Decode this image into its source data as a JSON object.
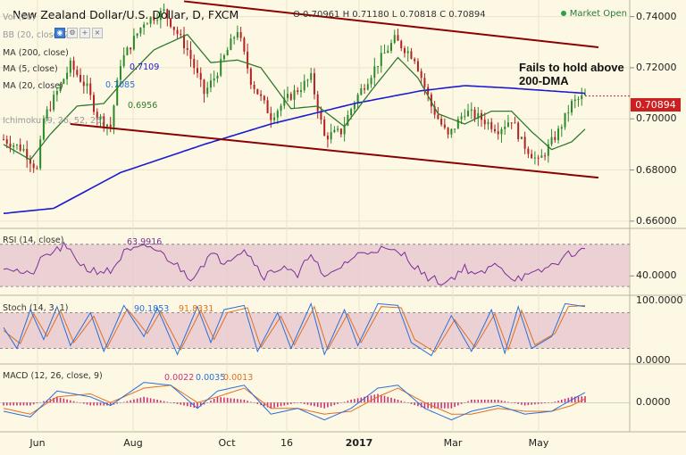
{
  "header": {
    "title": "New Zealand Dollar/U.S. Dollar, D, FXCM",
    "ohlc": "O 0.70961 H 0.71180 L 0.70818 C 0.70894",
    "market_status": "Market Open"
  },
  "indicators": {
    "vol": "Vol (20)",
    "bb": "BB (20, close, 2)",
    "ma200": "MA (200, close)",
    "ma200_value": "0.7109",
    "ma5": "MA (5, close)",
    "ma5_value": "0.7085",
    "ma20": "MA (20, close)",
    "ma20_value": "0.6956",
    "ichimoku": "Ichimoku (9, 26, 52, 26)"
  },
  "annotation": "Fails to hold above 200-DMA",
  "colors": {
    "up": "#2a8a2a",
    "down": "#b22222",
    "ma200": "#1a1ad0",
    "ma20": "#2f7a2f",
    "trendline": "#8b0000",
    "rsi": "#7a2f9a",
    "stoch_k": "#2a6fd6",
    "stoch_d": "#e07020",
    "macd": "#2a6fd6",
    "signal": "#e07020",
    "hist": "#cc3377",
    "band": "#e6c4cf"
  },
  "chart_data": [
    {
      "type": "candlestick",
      "name": "price",
      "title": "New Zealand Dollar/U.S. Dollar, D, FXCM",
      "x_labels": [
        "Jun",
        "Aug",
        "Oct",
        "16",
        "2017",
        "Mar",
        "May"
      ],
      "y_ticks": [
        0.66,
        0.68,
        0.7,
        0.72,
        0.74
      ],
      "y_tick_labels": [
        "0.66000",
        "0.68000",
        "0.70000",
        "0.72000",
        "0.74000"
      ],
      "ylim": [
        0.6575,
        0.7465
      ],
      "last_price": 0.70894,
      "last_price_label": "0.70894",
      "close_anchors": [
        [
          0,
          0.692
        ],
        [
          6,
          0.688
        ],
        [
          10,
          0.68
        ],
        [
          12,
          0.7
        ],
        [
          20,
          0.721
        ],
        [
          25,
          0.712
        ],
        [
          28,
          0.701
        ],
        [
          32,
          0.697
        ],
        [
          35,
          0.722
        ],
        [
          42,
          0.738
        ],
        [
          48,
          0.742
        ],
        [
          55,
          0.727
        ],
        [
          60,
          0.71
        ],
        [
          63,
          0.716
        ],
        [
          70,
          0.735
        ],
        [
          74,
          0.715
        ],
        [
          80,
          0.701
        ],
        [
          85,
          0.708
        ],
        [
          92,
          0.716
        ],
        [
          96,
          0.693
        ],
        [
          101,
          0.695
        ],
        [
          105,
          0.707
        ],
        [
          112,
          0.722
        ],
        [
          117,
          0.731
        ],
        [
          123,
          0.724
        ],
        [
          128,
          0.705
        ],
        [
          133,
          0.693
        ],
        [
          138,
          0.703
        ],
        [
          143,
          0.7
        ],
        [
          148,
          0.696
        ],
        [
          152,
          0.7
        ],
        [
          155,
          0.691
        ],
        [
          160,
          0.683
        ],
        [
          166,
          0.695
        ],
        [
          170,
          0.706
        ],
        [
          174,
          0.709
        ]
      ],
      "ma200_anchors": [
        [
          0,
          0.663
        ],
        [
          15,
          0.665
        ],
        [
          35,
          0.679
        ],
        [
          60,
          0.69
        ],
        [
          80,
          0.698
        ],
        [
          105,
          0.706
        ],
        [
          125,
          0.711
        ],
        [
          138,
          0.713
        ],
        [
          152,
          0.712
        ],
        [
          174,
          0.71
        ]
      ],
      "ma20_anchors": [
        [
          0,
          0.69
        ],
        [
          8,
          0.684
        ],
        [
          14,
          0.694
        ],
        [
          22,
          0.705
        ],
        [
          30,
          0.706
        ],
        [
          36,
          0.715
        ],
        [
          45,
          0.727
        ],
        [
          55,
          0.733
        ],
        [
          62,
          0.722
        ],
        [
          70,
          0.723
        ],
        [
          77,
          0.72
        ],
        [
          86,
          0.704
        ],
        [
          94,
          0.705
        ],
        [
          102,
          0.697
        ],
        [
          110,
          0.711
        ],
        [
          118,
          0.724
        ],
        [
          124,
          0.716
        ],
        [
          130,
          0.702
        ],
        [
          138,
          0.698
        ],
        [
          146,
          0.703
        ],
        [
          152,
          0.703
        ],
        [
          158,
          0.695
        ],
        [
          164,
          0.688
        ],
        [
          170,
          0.691
        ],
        [
          174,
          0.696
        ]
      ],
      "trendlines": [
        {
          "name": "upper",
          "from": [
            54,
            0.746
          ],
          "to": [
            178,
            0.728
          ]
        },
        {
          "name": "lower",
          "from": [
            20,
            0.698
          ],
          "to": [
            178,
            0.677
          ]
        }
      ]
    },
    {
      "type": "line",
      "name": "RSI",
      "label": "RSI (14, close)",
      "value_label": "63.9916",
      "ylim": [
        25,
        80
      ],
      "levels": [
        30,
        70
      ],
      "y_tick_labels": [
        "40.0000"
      ],
      "anchors": [
        [
          0,
          50
        ],
        [
          8,
          40
        ],
        [
          12,
          58
        ],
        [
          18,
          68
        ],
        [
          25,
          46
        ],
        [
          32,
          44
        ],
        [
          36,
          62
        ],
        [
          44,
          68
        ],
        [
          50,
          55
        ],
        [
          56,
          38
        ],
        [
          62,
          60
        ],
        [
          66,
          54
        ],
        [
          72,
          66
        ],
        [
          78,
          40
        ],
        [
          84,
          50
        ],
        [
          88,
          38
        ],
        [
          92,
          64
        ],
        [
          96,
          36
        ],
        [
          102,
          52
        ],
        [
          106,
          60
        ],
        [
          112,
          66
        ],
        [
          120,
          60
        ],
        [
          126,
          40
        ],
        [
          132,
          33
        ],
        [
          138,
          48
        ],
        [
          142,
          40
        ],
        [
          148,
          52
        ],
        [
          152,
          38
        ],
        [
          158,
          40
        ],
        [
          164,
          50
        ],
        [
          170,
          62
        ],
        [
          174,
          64
        ]
      ]
    },
    {
      "type": "line",
      "name": "Stochastic",
      "label": "Stoch (14, 3, 1)",
      "k_value_label": "90.1853",
      "d_value_label": "91.8331",
      "ylim": [
        0,
        100
      ],
      "levels": [
        20,
        80
      ],
      "y_tick_labels": [
        "100.0000",
        "0.0000"
      ],
      "k_anchors": [
        [
          0,
          55
        ],
        [
          4,
          20
        ],
        [
          8,
          85
        ],
        [
          12,
          35
        ],
        [
          16,
          90
        ],
        [
          20,
          25
        ],
        [
          26,
          80
        ],
        [
          30,
          15
        ],
        [
          36,
          92
        ],
        [
          42,
          40
        ],
        [
          46,
          88
        ],
        [
          52,
          10
        ],
        [
          58,
          90
        ],
        [
          62,
          30
        ],
        [
          66,
          85
        ],
        [
          72,
          92
        ],
        [
          76,
          15
        ],
        [
          82,
          80
        ],
        [
          86,
          20
        ],
        [
          92,
          95
        ],
        [
          96,
          10
        ],
        [
          102,
          85
        ],
        [
          106,
          25
        ],
        [
          112,
          95
        ],
        [
          118,
          92
        ],
        [
          122,
          30
        ],
        [
          128,
          8
        ],
        [
          134,
          75
        ],
        [
          140,
          15
        ],
        [
          146,
          85
        ],
        [
          150,
          12
        ],
        [
          154,
          90
        ],
        [
          158,
          20
        ],
        [
          164,
          40
        ],
        [
          168,
          95
        ],
        [
          174,
          90
        ]
      ],
      "d_anchors": [
        [
          0,
          50
        ],
        [
          5,
          28
        ],
        [
          9,
          78
        ],
        [
          13,
          40
        ],
        [
          17,
          84
        ],
        [
          21,
          30
        ],
        [
          27,
          74
        ],
        [
          31,
          22
        ],
        [
          37,
          86
        ],
        [
          43,
          45
        ],
        [
          47,
          82
        ],
        [
          53,
          18
        ],
        [
          59,
          84
        ],
        [
          63,
          35
        ],
        [
          67,
          80
        ],
        [
          73,
          88
        ],
        [
          77,
          22
        ],
        [
          83,
          74
        ],
        [
          87,
          26
        ],
        [
          93,
          90
        ],
        [
          97,
          18
        ],
        [
          103,
          78
        ],
        [
          107,
          30
        ],
        [
          113,
          90
        ],
        [
          119,
          88
        ],
        [
          123,
          35
        ],
        [
          129,
          14
        ],
        [
          135,
          68
        ],
        [
          141,
          22
        ],
        [
          147,
          78
        ],
        [
          151,
          18
        ],
        [
          155,
          84
        ],
        [
          159,
          26
        ],
        [
          165,
          45
        ],
        [
          169,
          90
        ],
        [
          174,
          92
        ]
      ]
    },
    {
      "type": "line",
      "name": "MACD",
      "label": "MACD (12, 26, close, 9)",
      "hist_value_label": "0.0022",
      "macd_value_label": "0.0035",
      "signal_value_label": "0.0013",
      "ylim": [
        -0.0095,
        0.0115
      ],
      "y_tick_labels": [
        "0.0000"
      ],
      "macd_anchors": [
        [
          0,
          -0.003
        ],
        [
          8,
          -0.005
        ],
        [
          16,
          0.004
        ],
        [
          26,
          0.002
        ],
        [
          32,
          -0.001
        ],
        [
          42,
          0.007
        ],
        [
          50,
          0.006
        ],
        [
          58,
          -0.002
        ],
        [
          64,
          0.004
        ],
        [
          72,
          0.006
        ],
        [
          80,
          -0.004
        ],
        [
          88,
          -0.002
        ],
        [
          96,
          -0.006
        ],
        [
          104,
          -0.002
        ],
        [
          112,
          0.005
        ],
        [
          118,
          0.006
        ],
        [
          126,
          -0.002
        ],
        [
          134,
          -0.006
        ],
        [
          140,
          -0.003
        ],
        [
          148,
          -0.001
        ],
        [
          156,
          -0.004
        ],
        [
          164,
          -0.003
        ],
        [
          170,
          0.001
        ],
        [
          174,
          0.0035
        ]
      ],
      "signal_anchors": [
        [
          0,
          -0.002
        ],
        [
          8,
          -0.004
        ],
        [
          16,
          0.002
        ],
        [
          26,
          0.003
        ],
        [
          32,
          0.0
        ],
        [
          42,
          0.005
        ],
        [
          50,
          0.006
        ],
        [
          58,
          0.0
        ],
        [
          64,
          0.002
        ],
        [
          72,
          0.005
        ],
        [
          80,
          -0.002
        ],
        [
          88,
          -0.002
        ],
        [
          96,
          -0.004
        ],
        [
          104,
          -0.003
        ],
        [
          112,
          0.002
        ],
        [
          118,
          0.005
        ],
        [
          126,
          0.0
        ],
        [
          134,
          -0.004
        ],
        [
          140,
          -0.004
        ],
        [
          148,
          -0.002
        ],
        [
          156,
          -0.003
        ],
        [
          164,
          -0.003
        ],
        [
          170,
          -0.001
        ],
        [
          174,
          0.0013
        ]
      ]
    }
  ]
}
